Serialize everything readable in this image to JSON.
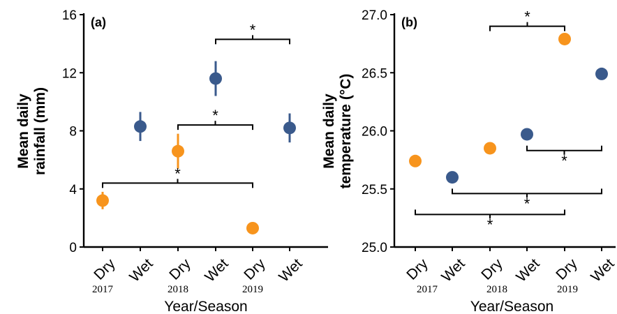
{
  "colors": {
    "dry": "#f7941d",
    "wet": "#3a5a8c",
    "axis": "#000000"
  },
  "chart_data": [
    {
      "type": "scatter",
      "panel_label": "(a)",
      "ylabel_lines": [
        "Mean daily",
        "rainfall (mm)"
      ],
      "xlabel": "Year/Season",
      "ylim": [
        0,
        16
      ],
      "yticks": [
        "0",
        "4",
        "8",
        "12",
        "16"
      ],
      "categories": [
        "Dry",
        "Wet",
        "Dry",
        "Wet",
        "Dry",
        "Wet"
      ],
      "years": [
        "2017",
        "2018",
        "2019"
      ],
      "points": [
        {
          "category": "Dry",
          "year": "2017",
          "value": 3.2,
          "err": 0.6,
          "season": "dry"
        },
        {
          "category": "Wet",
          "year": "2017",
          "value": 8.3,
          "err": 1.0,
          "season": "wet"
        },
        {
          "category": "Dry",
          "year": "2018",
          "value": 6.6,
          "err": 1.2,
          "season": "dry"
        },
        {
          "category": "Wet",
          "year": "2018",
          "value": 11.6,
          "err": 1.2,
          "season": "wet"
        },
        {
          "category": "Dry",
          "year": "2019",
          "value": 1.3,
          "err": 0.0,
          "season": "dry"
        },
        {
          "category": "Wet",
          "year": "2019",
          "value": 8.2,
          "err": 1.0,
          "season": "wet"
        }
      ],
      "significance": [
        {
          "from": 0,
          "to": 4,
          "y": 4.4,
          "tick": "down",
          "star_side": "above",
          "label": "*"
        },
        {
          "from": 2,
          "to": 4,
          "y": 8.4,
          "tick": "down",
          "star_side": "above",
          "label": "*"
        },
        {
          "from": 3,
          "to": 5,
          "y": 14.3,
          "tick": "down",
          "star_side": "above",
          "label": "*"
        }
      ]
    },
    {
      "type": "scatter",
      "panel_label": "(b)",
      "ylabel_lines": [
        "Mean daily",
        "temperature (°C)"
      ],
      "xlabel": "Year/Season",
      "ylim": [
        25.0,
        27.0
      ],
      "yticks": [
        "25.0",
        "25.5",
        "26.0",
        "26.5",
        "27.0"
      ],
      "categories": [
        "Dry",
        "Wet",
        "Dry",
        "Wet",
        "Dry",
        "Wet"
      ],
      "years": [
        "2017",
        "2018",
        "2019"
      ],
      "points": [
        {
          "category": "Dry",
          "year": "2017",
          "value": 25.74,
          "err": 0,
          "season": "dry"
        },
        {
          "category": "Wet",
          "year": "2017",
          "value": 25.6,
          "err": 0,
          "season": "wet"
        },
        {
          "category": "Dry",
          "year": "2018",
          "value": 25.85,
          "err": 0,
          "season": "dry"
        },
        {
          "category": "Wet",
          "year": "2018",
          "value": 25.97,
          "err": 0,
          "season": "wet"
        },
        {
          "category": "Dry",
          "year": "2019",
          "value": 26.79,
          "err": 0,
          "season": "dry"
        },
        {
          "category": "Wet",
          "year": "2019",
          "value": 26.49,
          "err": 0,
          "season": "wet"
        }
      ],
      "significance": [
        {
          "from": 2,
          "to": 4,
          "y": 26.9,
          "tick": "down",
          "star_side": "above",
          "label": "*"
        },
        {
          "from": 3,
          "to": 5,
          "y": 25.83,
          "tick": "up",
          "star_side": "below",
          "label": "*"
        },
        {
          "from": 1,
          "to": 5,
          "y": 25.46,
          "tick": "up",
          "star_side": "below",
          "label": "*"
        },
        {
          "from": 0,
          "to": 4,
          "y": 25.28,
          "tick": "up",
          "star_side": "below",
          "label": "*"
        }
      ]
    }
  ]
}
